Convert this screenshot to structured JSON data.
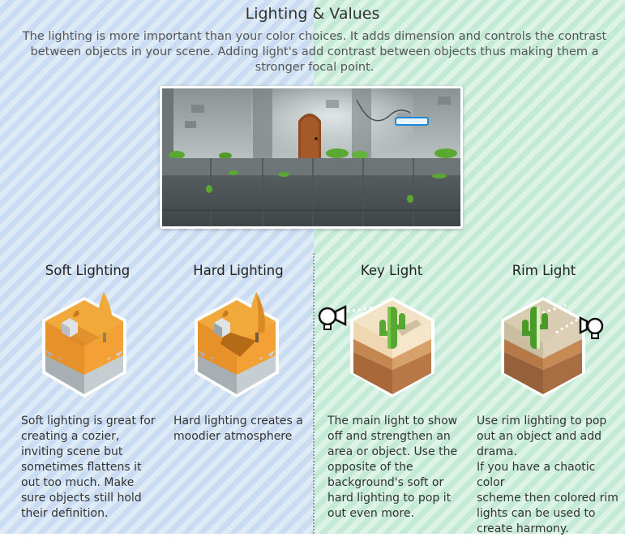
{
  "title": "Lighting & Values",
  "intro": "The lighting is more important than your color choices.  It adds dimension and controls the contrast between objects in your scene. Adding light's add contrast between objects thus making them a stronger focal point.",
  "colors": {
    "left_bg": "#c9dcf1",
    "right_bg": "#c4ead5",
    "orange_top": "#f0a93a",
    "orange_side": "#e7912b",
    "sand_top": "#f3e3c6",
    "cactus": "#57a832"
  },
  "columns": [
    {
      "title": "Soft Lighting",
      "text": "Soft lighting is great for\ncreating a cozier,\ninviting scene but\nsometimes flattens it\nout too much.  Make\nsure objects still hold\ntheir definition.",
      "icon": "isometric-tile-icon"
    },
    {
      "title": "Hard Lighting",
      "text": "Hard lighting creates a\nmoodier atmosphere",
      "icon": "isometric-tile-icon"
    },
    {
      "title": "Key Light",
      "text": "The main light to show\noff and strengthen an\narea or object.  Use the\nopposite of the\nbackground's soft or\nhard lighting to pop it\nout even more.",
      "icon": "lamp-icon"
    },
    {
      "title": "Rim Light",
      "text": "Use rim lighting to pop\nout an object and add\ndrama.\nIf you have a chaotic color\nscheme then colored rim\nlights can be used to\ncreate harmony.",
      "icon": "lamp-icon"
    }
  ]
}
